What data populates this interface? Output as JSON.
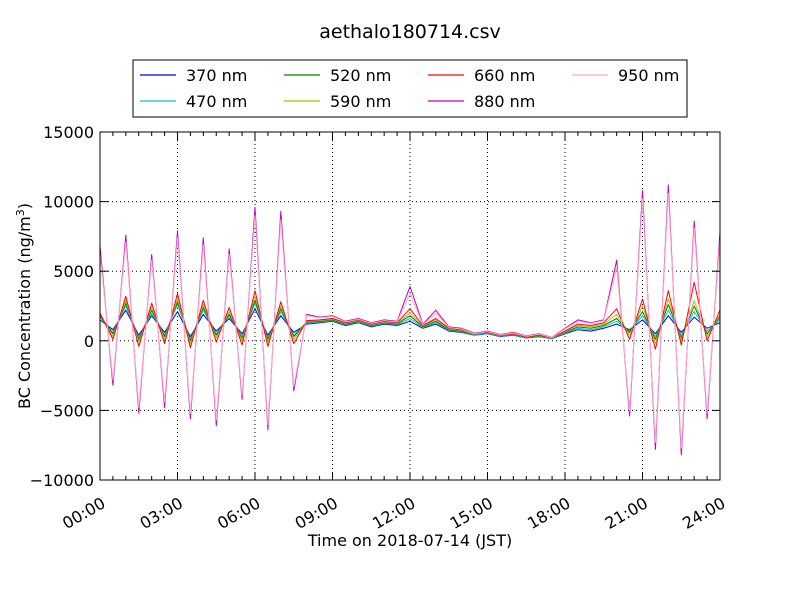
{
  "chart_data": {
    "type": "line",
    "title": "aethalo180714.csv",
    "xlabel": "Time on 2018-07-14 (JST)",
    "ylabel": "BC Concentration (ng/m",
    "ylabel_sup": "3",
    "ylabel_close": ")",
    "x_unit": "hours",
    "xlim": [
      0,
      24
    ],
    "ylim": [
      -10000,
      15000
    ],
    "grid": true,
    "legend_position": "top",
    "x_ticks": [
      {
        "value": 0,
        "label": "00:00"
      },
      {
        "value": 3,
        "label": "03:00"
      },
      {
        "value": 6,
        "label": "06:00"
      },
      {
        "value": 9,
        "label": "09:00"
      },
      {
        "value": 12,
        "label": "12:00"
      },
      {
        "value": 15,
        "label": "15:00"
      },
      {
        "value": 18,
        "label": "18:00"
      },
      {
        "value": 21,
        "label": "21:00"
      },
      {
        "value": 24,
        "label": "24:00"
      }
    ],
    "y_ticks": [
      {
        "value": 15000,
        "label": "15000"
      },
      {
        "value": 10000,
        "label": "10000"
      },
      {
        "value": 5000,
        "label": "5000"
      },
      {
        "value": 0,
        "label": "0"
      },
      {
        "value": -5000,
        "label": "−5000"
      },
      {
        "value": -10000,
        "label": "−10000"
      }
    ],
    "x": [
      0.0,
      0.5,
      1.0,
      1.5,
      2.0,
      2.5,
      3.0,
      3.5,
      4.0,
      4.5,
      5.0,
      5.5,
      6.0,
      6.5,
      7.0,
      7.5,
      8.0,
      8.5,
      9.0,
      9.5,
      10.0,
      10.5,
      11.0,
      11.5,
      12.0,
      12.5,
      13.0,
      13.5,
      14.0,
      14.5,
      15.0,
      15.5,
      16.0,
      16.5,
      17.0,
      17.5,
      18.0,
      18.5,
      19.0,
      19.5,
      20.0,
      20.5,
      21.0,
      21.5,
      22.0,
      22.5,
      23.0,
      23.5,
      24.0
    ],
    "series": [
      {
        "name": "370 nm",
        "color": "#0000ff",
        "values": [
          1500,
          800,
          2200,
          400,
          1800,
          600,
          2100,
          300,
          1900,
          700,
          1600,
          500,
          2300,
          400,
          1800,
          600,
          1200,
          1300,
          1400,
          1100,
          1300,
          1000,
          1200,
          1100,
          1400,
          900,
          1200,
          700,
          600,
          400,
          500,
          300,
          400,
          200,
          300,
          150,
          500,
          800,
          700,
          900,
          1200,
          800,
          1500,
          500,
          1800,
          600,
          1700,
          900,
          1300
        ]
      },
      {
        "name": "470 nm",
        "color": "#00cccc",
        "values": [
          1700,
          600,
          2500,
          200,
          2000,
          400,
          2600,
          100,
          2200,
          500,
          1800,
          300,
          2700,
          200,
          2100,
          400,
          1300,
          1350,
          1450,
          1150,
          1350,
          1050,
          1250,
          1150,
          1600,
          950,
          1300,
          750,
          650,
          420,
          520,
          320,
          420,
          220,
          320,
          160,
          550,
          900,
          800,
          1000,
          1400,
          700,
          1800,
          300,
          2200,
          400,
          2100,
          700,
          1500
        ]
      },
      {
        "name": "520 nm",
        "color": "#008000",
        "values": [
          1800,
          500,
          2700,
          100,
          2200,
          300,
          2800,
          0,
          2400,
          400,
          1900,
          200,
          2900,
          100,
          2300,
          300,
          1350,
          1400,
          1500,
          1200,
          1400,
          1100,
          1300,
          1200,
          1800,
          1000,
          1400,
          800,
          700,
          450,
          550,
          350,
          450,
          250,
          350,
          180,
          600,
          1000,
          900,
          1100,
          1600,
          600,
          2100,
          100,
          2600,
          200,
          2500,
          500,
          1700
        ]
      },
      {
        "name": "590 nm",
        "color": "#bbbb00",
        "values": [
          1900,
          300,
          2900,
          -100,
          2400,
          100,
          3000,
          -200,
          2600,
          200,
          2100,
          0,
          3200,
          -100,
          2500,
          100,
          1400,
          1450,
          1550,
          1250,
          1450,
          1150,
          1350,
          1250,
          2000,
          1050,
          1500,
          850,
          750,
          480,
          580,
          380,
          480,
          280,
          380,
          200,
          650,
          1100,
          1000,
          1200,
          1900,
          400,
          2500,
          -200,
          3000,
          0,
          2900,
          300,
          1900
        ]
      },
      {
        "name": "660 nm",
        "color": "#ff0000",
        "values": [
          2000,
          100,
          3200,
          -400,
          2700,
          -200,
          3400,
          -500,
          2900,
          -100,
          2400,
          -300,
          3600,
          -400,
          2800,
          -200,
          1450,
          1500,
          1600,
          1300,
          1500,
          1200,
          1400,
          1300,
          2300,
          1100,
          1600,
          900,
          800,
          500,
          600,
          400,
          500,
          300,
          400,
          220,
          700,
          1200,
          1100,
          1300,
          2300,
          100,
          3000,
          -600,
          3600,
          -300,
          4200,
          0,
          2200
        ]
      },
      {
        "name": "880 nm",
        "color": "#c000c0",
        "values": [
          6800,
          -3200,
          7600,
          -5200,
          6200,
          -4800,
          7900,
          -5600,
          7400,
          -6100,
          6600,
          -4200,
          9600,
          -6400,
          9300,
          -3600,
          1900,
          1700,
          1800,
          1400,
          1600,
          1300,
          1500,
          1400,
          3900,
          1200,
          2200,
          1000,
          900,
          550,
          700,
          450,
          600,
          350,
          500,
          250,
          900,
          1500,
          1300,
          1500,
          5800,
          -5400,
          10800,
          -7800,
          11200,
          -8200,
          8600,
          -5600,
          7800
        ]
      },
      {
        "name": "950 nm",
        "color": "#ffaacc",
        "values": [
          6300,
          -2800,
          7100,
          -4800,
          5800,
          -4400,
          7400,
          -5200,
          6900,
          -5700,
          6200,
          -3900,
          9000,
          -6000,
          8700,
          -3300,
          1800,
          1650,
          1750,
          1350,
          1550,
          1250,
          1450,
          1350,
          3400,
          1150,
          2000,
          950,
          850,
          520,
          660,
          420,
          560,
          330,
          470,
          240,
          850,
          1400,
          1250,
          1450,
          5300,
          -5000,
          10200,
          -7300,
          10600,
          -7700,
          8100,
          -5200,
          7300
        ]
      }
    ]
  }
}
